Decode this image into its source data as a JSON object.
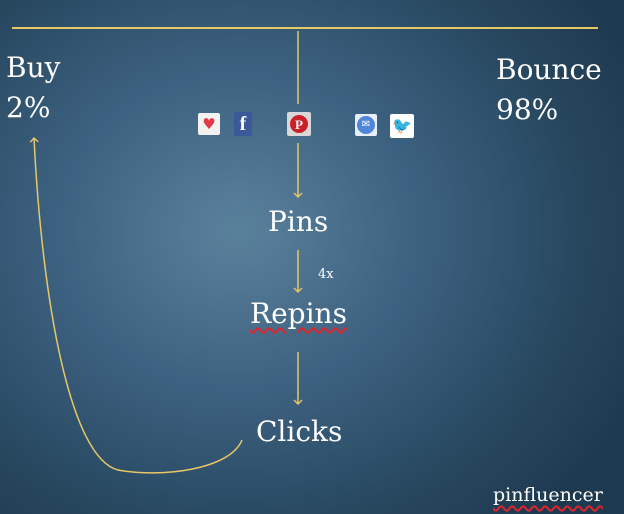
{
  "outcomes": {
    "buy": {
      "label": "Buy",
      "percent": "2%"
    },
    "bounce": {
      "label": "Bounce",
      "percent": "98%"
    }
  },
  "share_icons": [
    "heart-icon",
    "facebook-icon",
    "pinterest-icon",
    "email-icon",
    "twitter-icon"
  ],
  "share_glyphs": {
    "heart": "♥",
    "facebook": "f",
    "pinterest": "P",
    "email": "✉",
    "twitter": "🐦"
  },
  "flow": {
    "pins": "Pins",
    "multiplier": "4x",
    "repins": "Repins",
    "clicks": "Clicks"
  },
  "brand": "pinfluencer",
  "colors": {
    "connector": "#e8c767",
    "text": "#ffffff",
    "spellcheck_underline": "#e0242a",
    "background_center": "#5a819c",
    "background_edge": "#1e3a51"
  }
}
